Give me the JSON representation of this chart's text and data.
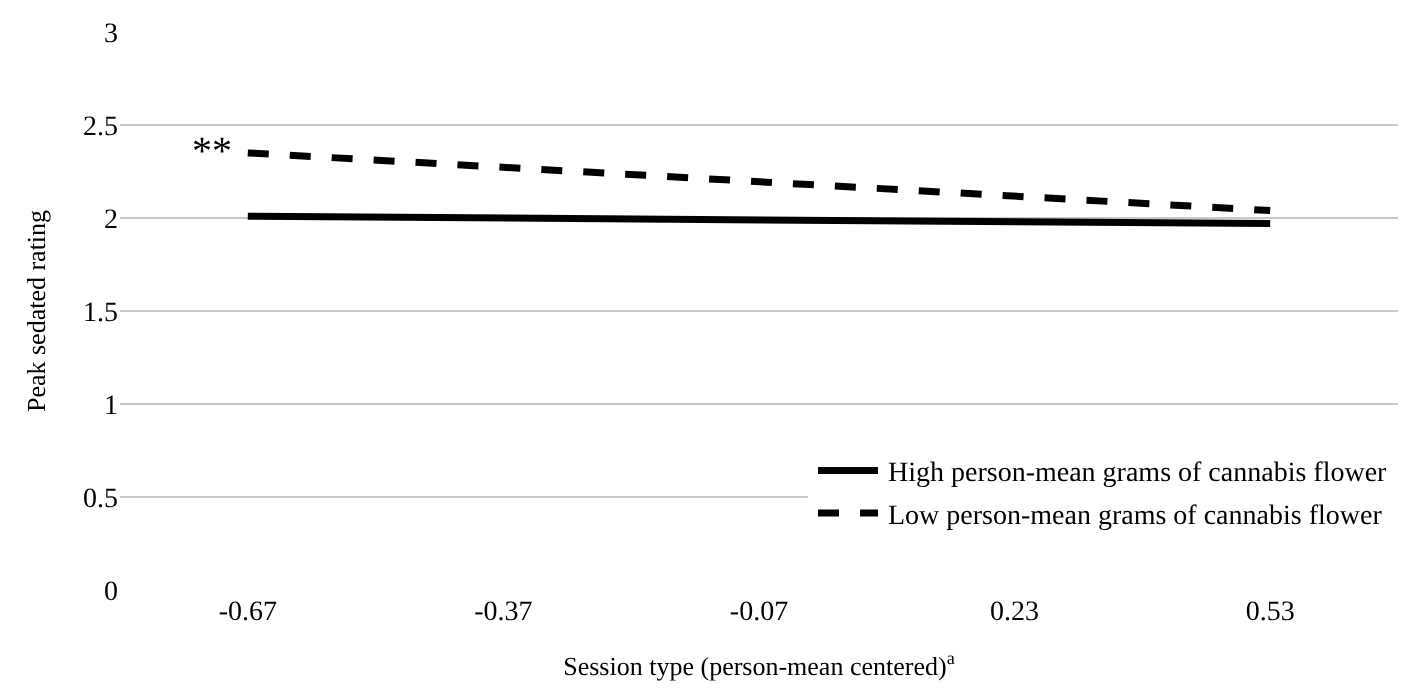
{
  "chart_data": {
    "type": "line",
    "xlabel": "Session type (person-mean centered)$^{a}$",
    "ylabel": "Peak sedated rating",
    "x": [
      -0.67,
      0.53
    ],
    "series": [
      {
        "name": "High person-mean grams of cannabis flower",
        "color": "#000000",
        "values": [
          2.01,
          1.97
        ],
        "line_style": "solid"
      },
      {
        "name": "Low person-mean grams of cannabis flower",
        "color": "#000000",
        "values": [
          2.35,
          2.04
        ],
        "line_style": "dashed"
      }
    ],
    "xlim": [
      -0.82,
      0.68
    ],
    "xticks": [
      -0.67,
      -0.37,
      -0.07,
      0.23,
      0.53
    ],
    "ylim": [
      0,
      3
    ],
    "yticks": [
      0,
      0.5,
      1,
      1.5,
      2,
      2.5,
      3
    ],
    "grid": "y",
    "legend": "bottom right",
    "marker": "none",
    "annotations": [
      {
        "text": "**",
        "x": -0.67,
        "y": 2.35
      }
    ]
  }
}
